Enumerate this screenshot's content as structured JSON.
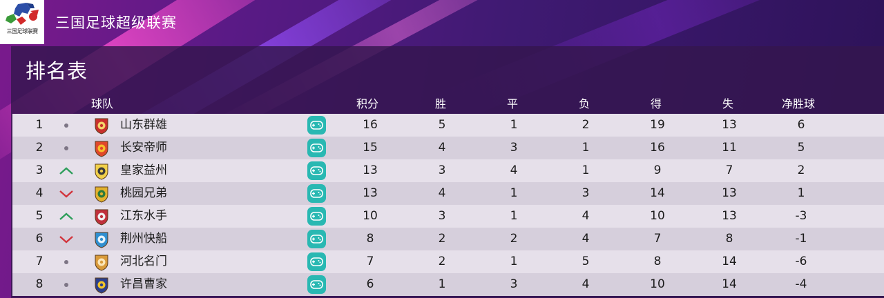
{
  "app": {
    "title": "三国足球超级联赛",
    "logo_text": "三国足球联赛",
    "logo_icon": "league-logo"
  },
  "standings": {
    "title": "排名表",
    "columns": {
      "team": "球队",
      "points": "积分",
      "wins": "胜",
      "draws": "平",
      "losses": "负",
      "goals_for": "得",
      "goals_against": "失",
      "goal_diff": "净胜球"
    },
    "rows": [
      {
        "rank": "1",
        "trend": "same",
        "crest": "shandong-crest",
        "team": "山东群雄",
        "points": "16",
        "wins": "5",
        "draws": "1",
        "losses": "2",
        "goals_for": "19",
        "goals_against": "13",
        "goal_diff": "6"
      },
      {
        "rank": "2",
        "trend": "same",
        "crest": "changan-crest",
        "team": "长安帝师",
        "points": "15",
        "wins": "4",
        "draws": "3",
        "losses": "1",
        "goals_for": "16",
        "goals_against": "11",
        "goal_diff": "5"
      },
      {
        "rank": "3",
        "trend": "up",
        "crest": "yizhou-crest",
        "team": "皇家益州",
        "points": "13",
        "wins": "3",
        "draws": "4",
        "losses": "1",
        "goals_for": "9",
        "goals_against": "7",
        "goal_diff": "2"
      },
      {
        "rank": "4",
        "trend": "down",
        "crest": "taoyuan-crest",
        "team": "桃园兄弟",
        "points": "13",
        "wins": "4",
        "draws": "1",
        "losses": "3",
        "goals_for": "14",
        "goals_against": "13",
        "goal_diff": "1"
      },
      {
        "rank": "5",
        "trend": "up",
        "crest": "jiangdong-crest",
        "team": "江东水手",
        "points": "10",
        "wins": "3",
        "draws": "1",
        "losses": "4",
        "goals_for": "10",
        "goals_against": "13",
        "goal_diff": "-3"
      },
      {
        "rank": "6",
        "trend": "down",
        "crest": "jingzhou-crest",
        "team": "荆州快船",
        "points": "8",
        "wins": "2",
        "draws": "2",
        "losses": "4",
        "goals_for": "7",
        "goals_against": "8",
        "goal_diff": "-1"
      },
      {
        "rank": "7",
        "trend": "same",
        "crest": "hebei-crest",
        "team": "河北名门",
        "points": "7",
        "wins": "2",
        "draws": "1",
        "losses": "5",
        "goals_for": "8",
        "goals_against": "14",
        "goal_diff": "-6"
      },
      {
        "rank": "8",
        "trend": "same",
        "crest": "xuchang-crest",
        "team": "许昌曹家",
        "points": "6",
        "wins": "1",
        "draws": "3",
        "losses": "4",
        "goals_for": "10",
        "goals_against": "14",
        "goal_diff": "-4"
      }
    ]
  },
  "colors": {
    "row_odd": "#e6e0ea",
    "row_even": "#d6cfdc",
    "trend_up": "#2e9e5b",
    "trend_down": "#d2343c",
    "trend_same": "#7d7585",
    "control_button": "#29b8b2"
  },
  "icons": {
    "controller": "gamepad-icon",
    "up": "chevron-up-icon",
    "down": "chevron-down-icon",
    "same": "dot-icon"
  }
}
